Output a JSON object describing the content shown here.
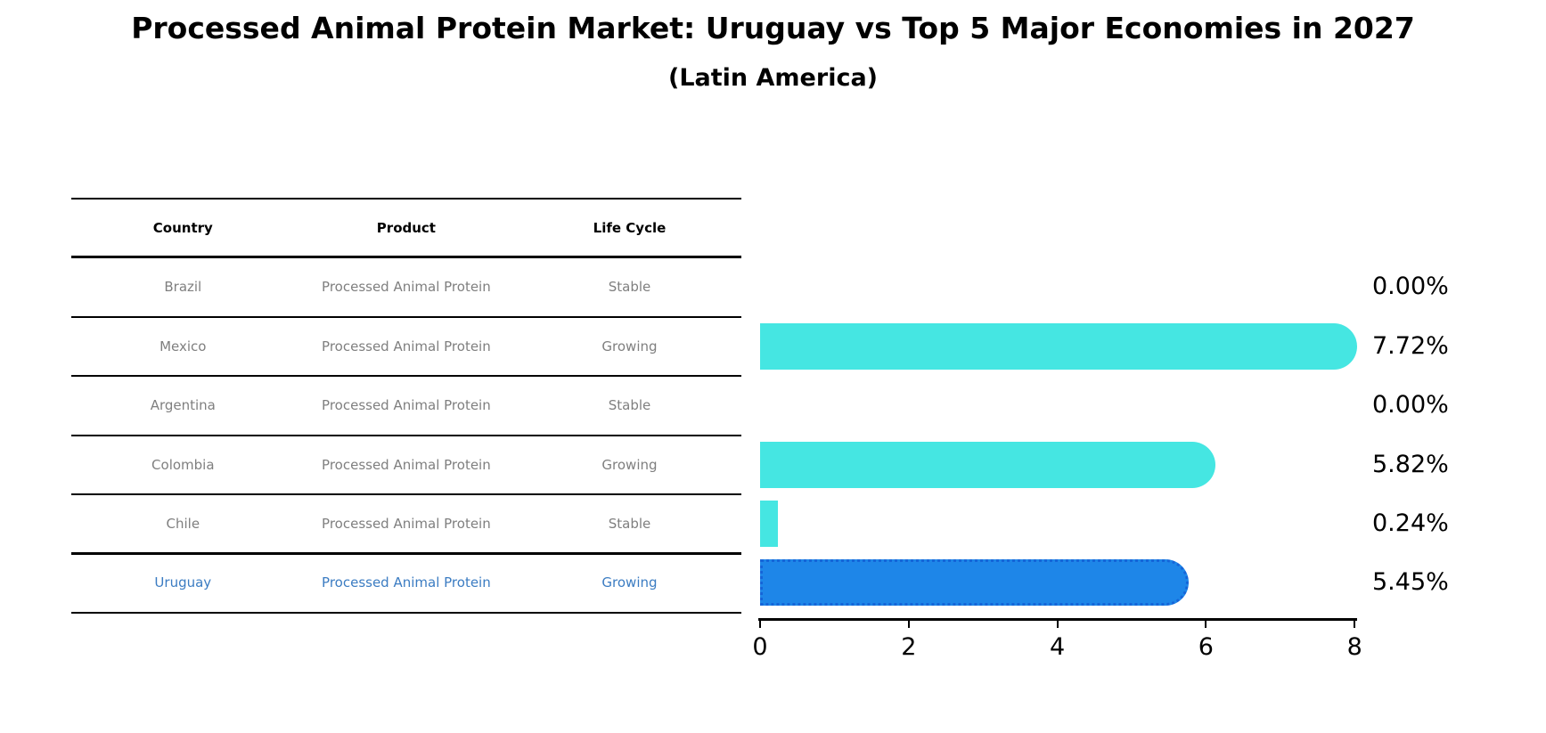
{
  "title": "Processed Animal Protein Market: Uruguay vs Top 5 Major Economies in 2027",
  "subtitle": "(Latin America)",
  "table": {
    "headers": [
      "Country",
      "Product",
      "Life Cycle"
    ],
    "rows": [
      {
        "country": "Brazil",
        "product": "Processed Animal Protein",
        "life_cycle": "Stable",
        "highlight": false
      },
      {
        "country": "Mexico",
        "product": "Processed Animal Protein",
        "life_cycle": "Growing",
        "highlight": false
      },
      {
        "country": "Argentina",
        "product": "Processed Animal Protein",
        "life_cycle": "Stable",
        "highlight": false
      },
      {
        "country": "Colombia",
        "product": "Processed Animal Protein",
        "life_cycle": "Growing",
        "highlight": false
      },
      {
        "country": "Chile",
        "product": "Processed Animal Protein",
        "life_cycle": "Stable",
        "highlight": false
      },
      {
        "country": "Uruguay",
        "product": "Processed Animal Protein",
        "life_cycle": "Growing",
        "highlight": true
      }
    ]
  },
  "chart_data": {
    "type": "bar",
    "orientation": "horizontal",
    "title": "Processed Animal Protein Market: Uruguay vs Top 5 Major Economies in 2027",
    "subtitle": "(Latin America)",
    "categories": [
      "Brazil",
      "Mexico",
      "Argentina",
      "Colombia",
      "Chile",
      "Uruguay"
    ],
    "values": [
      0.0,
      7.72,
      0.0,
      5.82,
      0.24,
      5.45
    ],
    "value_labels": [
      "0.00%",
      "7.72%",
      "0.00%",
      "5.82%",
      "0.24%",
      "5.45%"
    ],
    "x_ticks": [
      0,
      2,
      4,
      6,
      8
    ],
    "xlim": [
      0,
      8
    ],
    "ylabel": "",
    "xlabel": "",
    "grid": false,
    "legend": false,
    "bar_color": "#45E6E2",
    "highlight_bar_color": "#1E86E8",
    "highlight_text_color": "#3b7cc2",
    "highlight_index": 5
  }
}
